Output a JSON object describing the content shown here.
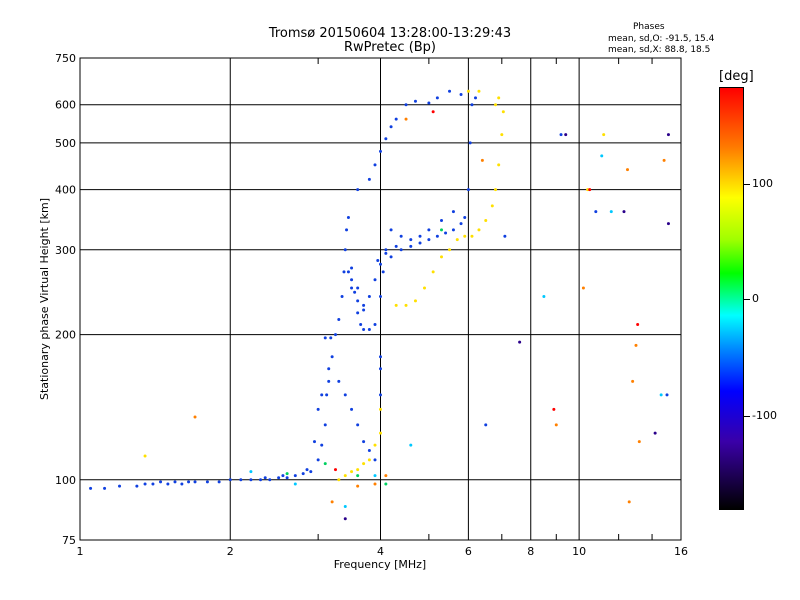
{
  "header": {
    "title_line1": "Tromsø 20150604 13:28:00-13:29:43",
    "title_line2": "RwPretec (Bp)",
    "stats_title": "Phases",
    "stats_line1": "mean, sd,O:  -91.5, 15.4",
    "stats_line2": "mean, sd,X:   88.8, 18.5"
  },
  "colorbar": {
    "unit_label": "[deg]",
    "ticks": [
      "100",
      "0",
      "-100"
    ],
    "colors": [
      "#ff0000",
      "#ffff00",
      "#00ff00",
      "#00ffff",
      "#0000ff",
      "#000000"
    ]
  },
  "chart_data": {
    "type": "scatter",
    "xlabel": "Frequency [MHz]",
    "ylabel": "Stationary phase Virtual Height [km]",
    "xscale": "log",
    "yscale": "log",
    "xlim": [
      1,
      16
    ],
    "ylim": [
      75,
      750
    ],
    "x_ticks": [
      "1",
      "2",
      "4",
      "6",
      "8",
      "10",
      "16"
    ],
    "y_ticks": [
      "75",
      "100",
      "200",
      "300",
      "400",
      "500",
      "600",
      "750"
    ],
    "grid": true,
    "series": [
      {
        "color": "#1040e0",
        "points": [
          [
            1.05,
            96
          ],
          [
            1.12,
            96
          ],
          [
            1.2,
            97
          ],
          [
            1.3,
            97
          ],
          [
            1.4,
            98
          ],
          [
            1.5,
            98
          ],
          [
            1.6,
            98
          ],
          [
            1.7,
            99
          ],
          [
            1.8,
            99
          ],
          [
            1.9,
            99
          ],
          [
            2.0,
            100
          ],
          [
            2.1,
            100
          ],
          [
            2.2,
            100
          ],
          [
            2.3,
            100
          ],
          [
            2.4,
            100
          ],
          [
            2.5,
            101
          ],
          [
            2.6,
            101
          ],
          [
            2.7,
            102
          ],
          [
            2.8,
            103
          ],
          [
            2.9,
            104
          ],
          [
            3.0,
            110
          ],
          [
            3.05,
            118
          ],
          [
            3.1,
            130
          ],
          [
            3.12,
            150
          ],
          [
            3.15,
            160
          ],
          [
            3.1,
            197
          ],
          [
            3.18,
            197
          ],
          [
            3.25,
            200
          ],
          [
            3.3,
            215
          ],
          [
            3.35,
            240
          ],
          [
            3.38,
            270
          ],
          [
            3.4,
            300
          ],
          [
            3.42,
            330
          ],
          [
            3.45,
            350
          ],
          [
            3.5,
            275
          ],
          [
            3.55,
            245
          ],
          [
            3.6,
            222
          ],
          [
            3.65,
            210
          ],
          [
            3.7,
            205
          ],
          [
            3.8,
            205
          ],
          [
            3.9,
            210
          ],
          [
            4.0,
            240
          ],
          [
            4.05,
            270
          ],
          [
            4.1,
            300
          ],
          [
            4.2,
            330
          ],
          [
            4.4,
            320
          ],
          [
            4.6,
            315
          ],
          [
            4.8,
            310
          ],
          [
            5.0,
            315
          ],
          [
            5.2,
            320
          ],
          [
            5.4,
            325
          ],
          [
            5.6,
            330
          ],
          [
            5.8,
            340
          ],
          [
            5.9,
            350
          ],
          [
            6.0,
            400
          ],
          [
            6.05,
            500
          ],
          [
            6.1,
            600
          ],
          [
            3.5,
            250
          ],
          [
            3.6,
            235
          ],
          [
            3.7,
            225
          ],
          [
            3.8,
            240
          ],
          [
            3.9,
            260
          ],
          [
            4.0,
            280
          ],
          [
            4.2,
            290
          ],
          [
            4.4,
            300
          ],
          [
            4.6,
            305
          ],
          [
            4.8,
            320
          ],
          [
            5.0,
            330
          ],
          [
            5.3,
            345
          ],
          [
            5.6,
            360
          ],
          [
            3.6,
            400
          ],
          [
            3.8,
            420
          ],
          [
            3.9,
            450
          ],
          [
            4.0,
            480
          ],
          [
            4.1,
            510
          ],
          [
            4.2,
            540
          ],
          [
            4.3,
            560
          ],
          [
            4.5,
            600
          ],
          [
            4.7,
            610
          ],
          [
            5.0,
            605
          ],
          [
            5.2,
            620
          ],
          [
            5.5,
            640
          ],
          [
            5.8,
            630
          ],
          [
            6.2,
            620
          ],
          [
            3.5,
            260
          ],
          [
            3.45,
            270
          ],
          [
            3.6,
            250
          ],
          [
            3.7,
            230
          ],
          [
            3.95,
            285
          ],
          [
            4.1,
            295
          ],
          [
            4.3,
            305
          ],
          [
            1.35,
            98
          ],
          [
            1.45,
            99
          ],
          [
            1.55,
            99
          ],
          [
            1.65,
            99
          ],
          [
            2.35,
            101
          ],
          [
            2.55,
            102
          ],
          [
            2.85,
            105
          ],
          [
            2.95,
            120
          ],
          [
            3.0,
            140
          ],
          [
            3.05,
            150
          ],
          [
            3.15,
            170
          ],
          [
            3.2,
            180
          ],
          [
            3.3,
            160
          ],
          [
            3.4,
            150
          ],
          [
            3.5,
            140
          ],
          [
            3.6,
            130
          ],
          [
            3.7,
            120
          ],
          [
            3.8,
            115
          ],
          [
            3.9,
            110
          ],
          [
            4.0,
            150
          ],
          [
            4.0,
            170
          ],
          [
            4.0,
            180
          ],
          [
            6.5,
            130
          ],
          [
            7.1,
            320
          ],
          [
            9.2,
            520
          ],
          [
            10.8,
            360
          ],
          [
            15.0,
            150
          ]
        ]
      },
      {
        "color": "#ffe000",
        "points": [
          [
            4.3,
            230
          ],
          [
            4.5,
            230
          ],
          [
            4.7,
            235
          ],
          [
            4.9,
            250
          ],
          [
            5.1,
            270
          ],
          [
            5.3,
            290
          ],
          [
            5.5,
            300
          ],
          [
            5.7,
            315
          ],
          [
            5.9,
            320
          ],
          [
            6.1,
            320
          ],
          [
            6.3,
            330
          ],
          [
            6.5,
            345
          ],
          [
            6.7,
            370
          ],
          [
            6.8,
            400
          ],
          [
            6.9,
            450
          ],
          [
            7.0,
            520
          ],
          [
            7.05,
            580
          ],
          [
            6.9,
            620
          ],
          [
            6.3,
            640
          ],
          [
            6.0,
            640
          ],
          [
            3.6,
            105
          ],
          [
            3.7,
            108
          ],
          [
            3.8,
            110
          ],
          [
            3.9,
            118
          ],
          [
            4.0,
            125
          ],
          [
            4.0,
            140
          ],
          [
            3.3,
            100
          ],
          [
            3.4,
            102
          ],
          [
            3.5,
            104
          ],
          [
            6.8,
            600
          ],
          [
            10.4,
            400
          ],
          [
            11.2,
            520
          ],
          [
            1.35,
            112
          ]
        ]
      },
      {
        "color": "#ff8000",
        "points": [
          [
            1.7,
            135
          ],
          [
            3.2,
            90
          ],
          [
            3.6,
            97
          ],
          [
            4.5,
            560
          ],
          [
            6.4,
            460
          ],
          [
            9.0,
            130
          ],
          [
            10.2,
            250
          ],
          [
            12.5,
            440
          ],
          [
            12.8,
            160
          ],
          [
            13.0,
            190
          ],
          [
            13.2,
            120
          ],
          [
            12.6,
            90
          ],
          [
            14.8,
            460
          ],
          [
            3.9,
            98
          ],
          [
            4.1,
            102
          ]
        ]
      },
      {
        "color": "#ff0000",
        "points": [
          [
            3.25,
            105
          ],
          [
            8.9,
            140
          ],
          [
            10.5,
            400
          ],
          [
            13.1,
            210
          ],
          [
            5.1,
            580
          ]
        ]
      },
      {
        "color": "#00c8ff",
        "points": [
          [
            2.2,
            104
          ],
          [
            2.7,
            98
          ],
          [
            3.4,
            88
          ],
          [
            3.9,
            102
          ],
          [
            4.6,
            118
          ],
          [
            8.5,
            240
          ],
          [
            11.1,
            470
          ],
          [
            11.6,
            360
          ],
          [
            14.6,
            150
          ]
        ]
      },
      {
        "color": "#00d060",
        "points": [
          [
            2.6,
            103
          ],
          [
            3.1,
            108
          ],
          [
            3.6,
            102
          ],
          [
            4.1,
            98
          ],
          [
            5.3,
            330
          ]
        ]
      },
      {
        "color": "#2a008a",
        "points": [
          [
            3.4,
            83
          ],
          [
            7.6,
            193
          ],
          [
            12.3,
            360
          ],
          [
            14.2,
            125
          ],
          [
            15.1,
            340
          ],
          [
            15.1,
            520
          ],
          [
            9.4,
            520
          ]
        ]
      }
    ]
  }
}
